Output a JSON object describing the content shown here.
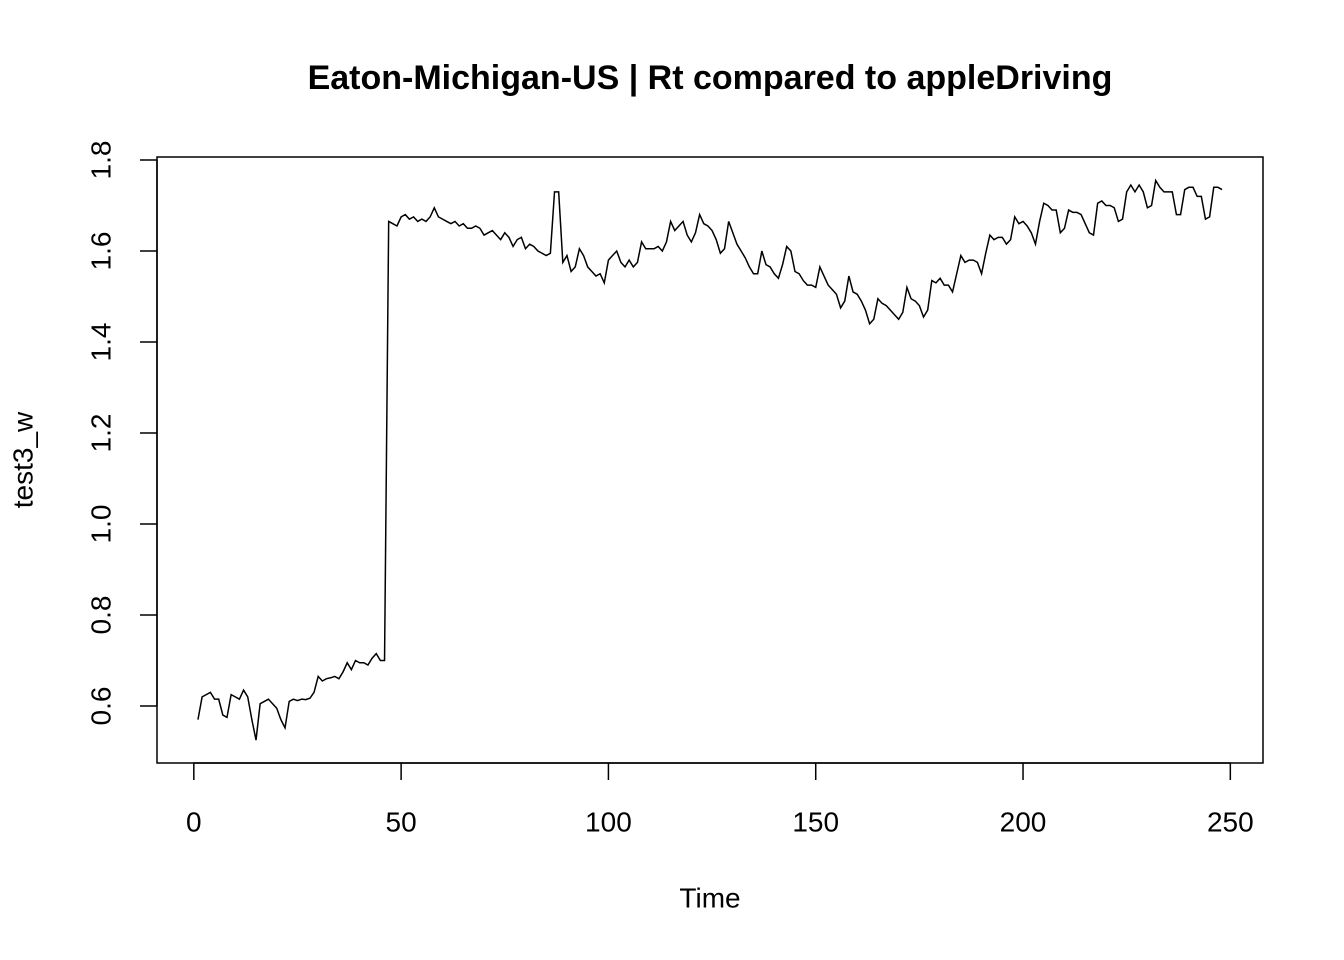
{
  "chart_data": {
    "type": "line",
    "title": "Eaton-Michigan-US | Rt compared to appleDriving",
    "xlabel": "Time",
    "ylabel": "test3_w",
    "x": [
      1,
      2,
      3,
      4,
      5,
      6,
      7,
      8,
      9,
      10,
      11,
      12,
      13,
      14,
      15,
      16,
      17,
      18,
      19,
      20,
      21,
      22,
      23,
      24,
      25,
      26,
      27,
      28,
      29,
      30,
      31,
      32,
      33,
      34,
      35,
      36,
      37,
      38,
      39,
      40,
      41,
      42,
      43,
      44,
      45,
      46,
      47,
      48,
      49,
      50,
      51,
      52,
      53,
      54,
      55,
      56,
      57,
      58,
      59,
      60,
      61,
      62,
      63,
      64,
      65,
      66,
      67,
      68,
      69,
      70,
      71,
      72,
      73,
      74,
      75,
      76,
      77,
      78,
      79,
      80,
      81,
      82,
      83,
      84,
      85,
      86,
      87,
      88,
      89,
      90,
      91,
      92,
      93,
      94,
      95,
      96,
      97,
      98,
      99,
      100,
      101,
      102,
      103,
      104,
      105,
      106,
      107,
      108,
      109,
      110,
      111,
      112,
      113,
      114,
      115,
      116,
      117,
      118,
      119,
      120,
      121,
      122,
      123,
      124,
      125,
      126,
      127,
      128,
      129,
      130,
      131,
      132,
      133,
      134,
      135,
      136,
      137,
      138,
      139,
      140,
      141,
      142,
      143,
      144,
      145,
      146,
      147,
      148,
      149,
      150,
      151,
      152,
      153,
      154,
      155,
      156,
      157,
      158,
      159,
      160,
      161,
      162,
      163,
      164,
      165,
      166,
      167,
      168,
      169,
      170,
      171,
      172,
      173,
      174,
      175,
      176,
      177,
      178,
      179,
      180,
      181,
      182,
      183,
      184,
      185,
      186,
      187,
      188,
      189,
      190,
      191,
      192,
      193,
      194,
      195,
      196,
      197,
      198,
      199,
      200,
      201,
      202,
      203,
      204,
      205,
      206,
      207,
      208,
      209,
      210,
      211,
      212,
      213,
      214,
      215,
      216,
      217,
      218,
      219,
      220,
      221,
      222,
      223,
      224,
      225,
      226,
      227,
      228,
      229,
      230,
      231,
      232,
      233,
      234,
      235,
      236,
      237,
      238,
      239,
      240,
      241,
      242,
      243,
      244,
      245,
      246,
      247,
      248
    ],
    "series": [
      {
        "name": "test3_w",
        "color": "#000000",
        "values": [
          0.57,
          0.62,
          0.625,
          0.63,
          0.615,
          0.615,
          0.58,
          0.575,
          0.625,
          0.62,
          0.615,
          0.635,
          0.62,
          0.57,
          0.525,
          0.605,
          0.61,
          0.615,
          0.605,
          0.595,
          0.57,
          0.552,
          0.61,
          0.615,
          0.612,
          0.615,
          0.614,
          0.617,
          0.63,
          0.665,
          0.655,
          0.66,
          0.662,
          0.665,
          0.66,
          0.675,
          0.695,
          0.68,
          0.7,
          0.695,
          0.695,
          0.69,
          0.705,
          0.715,
          0.7,
          0.7,
          1.665,
          1.66,
          1.655,
          1.675,
          1.68,
          1.67,
          1.675,
          1.665,
          1.67,
          1.665,
          1.675,
          1.695,
          1.675,
          1.67,
          1.665,
          1.66,
          1.665,
          1.655,
          1.66,
          1.65,
          1.65,
          1.655,
          1.65,
          1.635,
          1.64,
          1.645,
          1.635,
          1.625,
          1.64,
          1.63,
          1.61,
          1.625,
          1.63,
          1.605,
          1.615,
          1.61,
          1.6,
          1.595,
          1.59,
          1.595,
          1.73,
          1.73,
          1.575,
          1.59,
          1.555,
          1.565,
          1.605,
          1.59,
          1.565,
          1.555,
          1.545,
          1.55,
          1.53,
          1.58,
          1.59,
          1.6,
          1.575,
          1.565,
          1.58,
          1.565,
          1.575,
          1.62,
          1.605,
          1.605,
          1.605,
          1.61,
          1.6,
          1.62,
          1.665,
          1.645,
          1.655,
          1.665,
          1.635,
          1.62,
          1.64,
          1.68,
          1.66,
          1.655,
          1.645,
          1.625,
          1.595,
          1.605,
          1.665,
          1.64,
          1.615,
          1.6,
          1.585,
          1.565,
          1.55,
          1.55,
          1.6,
          1.57,
          1.565,
          1.55,
          1.54,
          1.57,
          1.61,
          1.6,
          1.555,
          1.55,
          1.535,
          1.525,
          1.525,
          1.52,
          1.565,
          1.545,
          1.525,
          1.515,
          1.505,
          1.475,
          1.49,
          1.545,
          1.51,
          1.505,
          1.49,
          1.47,
          1.44,
          1.45,
          1.495,
          1.485,
          1.48,
          1.47,
          1.46,
          1.45,
          1.465,
          1.52,
          1.495,
          1.49,
          1.48,
          1.455,
          1.47,
          1.535,
          1.53,
          1.54,
          1.525,
          1.525,
          1.51,
          1.55,
          1.59,
          1.575,
          1.58,
          1.58,
          1.575,
          1.55,
          1.595,
          1.635,
          1.625,
          1.63,
          1.63,
          1.615,
          1.625,
          1.675,
          1.66,
          1.665,
          1.655,
          1.64,
          1.615,
          1.665,
          1.705,
          1.7,
          1.69,
          1.69,
          1.64,
          1.65,
          1.69,
          1.685,
          1.685,
          1.68,
          1.66,
          1.64,
          1.635,
          1.705,
          1.71,
          1.7,
          1.7,
          1.695,
          1.665,
          1.67,
          1.73,
          1.745,
          1.73,
          1.745,
          1.73,
          1.695,
          1.7,
          1.755,
          1.74,
          1.73,
          1.73,
          1.73,
          1.68,
          1.68,
          1.735,
          1.74,
          1.74,
          1.72,
          1.72,
          1.67,
          1.675,
          1.74,
          1.74,
          1.735
        ]
      }
    ],
    "xlim": [
      -8.88,
      257.88
    ],
    "xticks": [
      0,
      50,
      100,
      150,
      200,
      250
    ],
    "ylim": [
      0.4747,
      1.8066
    ],
    "yticks": [
      0.6,
      0.8,
      {
        "value": 1,
        "label": "1.0"
      },
      1.2,
      1.4,
      1.6,
      1.8
    ]
  }
}
